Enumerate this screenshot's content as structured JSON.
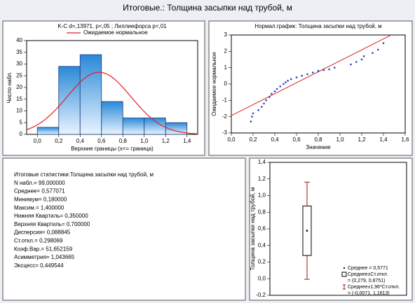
{
  "title": "Итоговые.: Толщина засыпки над трубой, м",
  "statistics": [
    "Итоговые статистики:Толщина засыпки над трубой, м",
    "N набл.= 99,000000",
    "Среднее= 0,577071",
    "Минимум= 0,180000",
    "Максим.= 1,400000",
    "Нижняя Квартиль= 0,350000",
    "Верхняя Квартиль= 0,700000",
    "Дисперсия= 0,088845",
    "Ст.откл.= 0,298069",
    "Коэф.Вар.= 51,652159",
    "Асимметрия= 1,043665",
    "Эксцесс= 0,449544"
  ],
  "chart_data": [
    {
      "type": "histogram",
      "title": "K-C d=,13971, p<,05 ; Лиллиефорса p<,01",
      "legend": "Ожидаемое нормальное",
      "x_label": "Верхние границы (x<= граница)",
      "y_label": "Число набл.",
      "bins": [
        0,
        0.2,
        0.4,
        0.6,
        0.8,
        1.0,
        1.2,
        1.4
      ],
      "values": [
        3,
        29,
        34,
        14,
        7,
        7,
        5
      ],
      "color": "#4a9ee0",
      "curve_color": "#e02020",
      "xlim": [
        -0.1,
        1.5
      ],
      "xticks": [
        {
          "value": 0,
          "label": "0,0"
        },
        {
          "value": 0.2,
          "label": "0,2"
        },
        {
          "value": 0.4,
          "label": "0,4"
        },
        {
          "value": 0.6,
          "label": "0,6"
        },
        {
          "value": 0.8,
          "label": "0,8"
        },
        {
          "value": 1.0,
          "label": "1,0"
        },
        {
          "value": 1.2,
          "label": "1,2"
        },
        {
          "value": 1.4,
          "label": "1,4"
        }
      ],
      "ylim": [
        0,
        40
      ],
      "yticks": [
        0,
        5,
        10,
        15,
        20,
        25,
        30,
        35,
        40
      ]
    },
    {
      "type": "scatter",
      "title": "Нормал.график: Толщина засыпки над трубой, м",
      "x_label": "Значение",
      "y_label": "Ожидаемое нормальное",
      "x": [
        0.18,
        0.19,
        0.2,
        0.25,
        0.28,
        0.3,
        0.32,
        0.35,
        0.37,
        0.4,
        0.42,
        0.45,
        0.48,
        0.5,
        0.52,
        0.55,
        0.6,
        0.65,
        0.7,
        0.75,
        0.8,
        0.85,
        0.9,
        0.95,
        1.1,
        1.15,
        1.2,
        1.22,
        1.3,
        1.35,
        1.4
      ],
      "y": [
        -2.3,
        -2.0,
        -1.8,
        -1.6,
        -1.4,
        -1.2,
        -1.0,
        -0.8,
        -0.6,
        -0.45,
        -0.3,
        -0.15,
        0,
        0.1,
        0.2,
        0.3,
        0.4,
        0.5,
        0.6,
        0.7,
        0.8,
        0.85,
        0.9,
        1.0,
        1.2,
        1.35,
        1.5,
        1.7,
        1.9,
        2.1,
        2.5
      ],
      "color": "#2040c0",
      "line_color": "#e02020",
      "xlim": [
        0,
        1.6
      ],
      "xticks": [
        {
          "value": 0,
          "label": "0,0"
        },
        {
          "value": 0.2,
          "label": "0,2"
        },
        {
          "value": 0.4,
          "label": "0,4"
        },
        {
          "value": 0.6,
          "label": "0,6"
        },
        {
          "value": 0.8,
          "label": "0,8"
        },
        {
          "value": 1.0,
          "label": "1,0"
        },
        {
          "value": 1.2,
          "label": "1,2"
        },
        {
          "value": 1.4,
          "label": "1,4"
        },
        {
          "value": 1.6,
          "label": "1,6"
        }
      ],
      "ylim": [
        -3,
        3
      ],
      "yticks": [
        -3,
        -2,
        -1,
        0,
        1,
        2,
        3
      ]
    },
    {
      "type": "box",
      "y_label": "Толщина засыпки над трубой, м",
      "mean": 0.5771,
      "box": [
        0.279,
        0.8751
      ],
      "whiskers": [
        -0.0071,
        1.1613
      ],
      "legend": [
        "Среднее = 0,5771",
        "Среднее±Ст.откл.",
        "= (0,279, 0,8751)",
        "Среднее±1,96*Ст.откл.",
        "= (-0,0071, 1,1613)"
      ],
      "color": "#000000",
      "whisker_color": "#a01818",
      "ylim": [
        -0.2,
        1.4
      ],
      "yticks": [
        {
          "value": -0.2,
          "label": "-0,2"
        },
        {
          "value": 0,
          "label": "0,0"
        },
        {
          "value": 0.2,
          "label": "0,2"
        },
        {
          "value": 0.4,
          "label": "0,4"
        },
        {
          "value": 0.6,
          "label": "0,6"
        },
        {
          "value": 0.8,
          "label": "0,8"
        },
        {
          "value": 1.0,
          "label": "1,0"
        },
        {
          "value": 1.2,
          "label": "1,2"
        },
        {
          "value": 1.4,
          "label": "1,4"
        }
      ]
    }
  ]
}
